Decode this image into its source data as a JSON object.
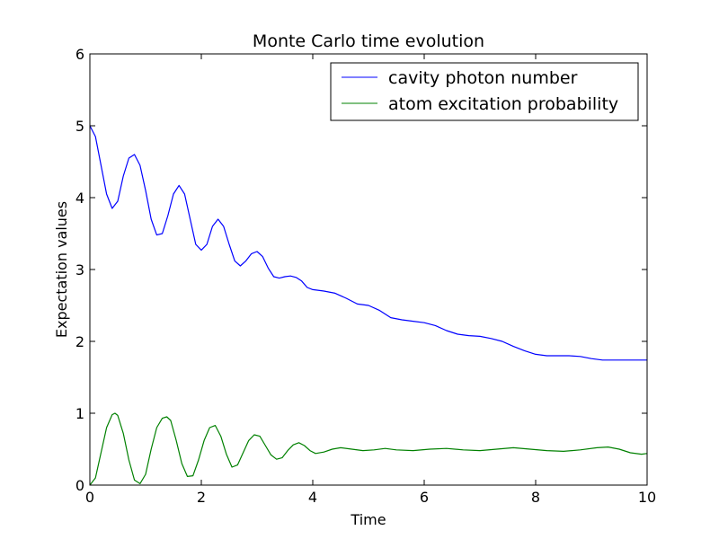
{
  "chart_data": {
    "type": "line",
    "title": "Monte Carlo time evolution",
    "xlabel": "Time",
    "ylabel": "Expectation values",
    "xlim": [
      0,
      10
    ],
    "ylim": [
      0,
      6
    ],
    "xticks": [
      0,
      2,
      4,
      6,
      8,
      10
    ],
    "yticks": [
      0,
      1,
      2,
      3,
      4,
      5,
      6
    ],
    "grid": false,
    "legend_position": "top-right",
    "series": [
      {
        "name": "cavity photon number",
        "color": "#0000ff",
        "x": [
          0,
          0.1,
          0.2,
          0.3,
          0.4,
          0.5,
          0.6,
          0.7,
          0.8,
          0.9,
          1.0,
          1.1,
          1.2,
          1.3,
          1.4,
          1.5,
          1.6,
          1.7,
          1.8,
          1.9,
          2.0,
          2.1,
          2.2,
          2.3,
          2.4,
          2.5,
          2.6,
          2.7,
          2.8,
          2.9,
          3.0,
          3.1,
          3.2,
          3.3,
          3.4,
          3.5,
          3.6,
          3.7,
          3.8,
          3.9,
          4.0,
          4.2,
          4.4,
          4.6,
          4.8,
          5.0,
          5.2,
          5.4,
          5.6,
          5.8,
          6.0,
          6.2,
          6.4,
          6.6,
          6.8,
          7.0,
          7.2,
          7.4,
          7.6,
          7.8,
          8.0,
          8.2,
          8.4,
          8.6,
          8.8,
          9.0,
          9.2,
          9.4,
          9.6,
          9.8,
          10.0
        ],
        "y": [
          5.0,
          4.85,
          4.45,
          4.05,
          3.85,
          3.95,
          4.3,
          4.55,
          4.6,
          4.45,
          4.1,
          3.7,
          3.48,
          3.5,
          3.75,
          4.05,
          4.17,
          4.05,
          3.7,
          3.35,
          3.27,
          3.35,
          3.6,
          3.7,
          3.6,
          3.35,
          3.12,
          3.05,
          3.12,
          3.22,
          3.25,
          3.18,
          3.02,
          2.9,
          2.88,
          2.9,
          2.91,
          2.89,
          2.84,
          2.75,
          2.72,
          2.7,
          2.67,
          2.6,
          2.52,
          2.5,
          2.43,
          2.33,
          2.3,
          2.28,
          2.26,
          2.22,
          2.15,
          2.1,
          2.08,
          2.07,
          2.04,
          2.0,
          1.93,
          1.87,
          1.82,
          1.8,
          1.8,
          1.8,
          1.79,
          1.76,
          1.74,
          1.74,
          1.74,
          1.74,
          1.74
        ]
      },
      {
        "name": "atom excitation probability",
        "color": "#008000",
        "x": [
          0,
          0.1,
          0.2,
          0.3,
          0.4,
          0.45,
          0.5,
          0.6,
          0.7,
          0.8,
          0.9,
          1.0,
          1.1,
          1.2,
          1.3,
          1.38,
          1.45,
          1.55,
          1.65,
          1.75,
          1.85,
          1.95,
          2.05,
          2.15,
          2.25,
          2.35,
          2.45,
          2.55,
          2.65,
          2.75,
          2.85,
          2.95,
          3.05,
          3.15,
          3.25,
          3.35,
          3.45,
          3.55,
          3.65,
          3.75,
          3.85,
          3.95,
          4.05,
          4.2,
          4.35,
          4.5,
          4.7,
          4.9,
          5.1,
          5.3,
          5.5,
          5.8,
          6.1,
          6.4,
          6.7,
          7.0,
          7.3,
          7.6,
          7.9,
          8.2,
          8.5,
          8.8,
          9.1,
          9.3,
          9.5,
          9.7,
          9.9,
          10.0
        ],
        "y": [
          0.0,
          0.1,
          0.45,
          0.8,
          0.98,
          1.0,
          0.97,
          0.72,
          0.35,
          0.07,
          0.02,
          0.15,
          0.5,
          0.8,
          0.93,
          0.95,
          0.9,
          0.62,
          0.3,
          0.12,
          0.13,
          0.35,
          0.62,
          0.8,
          0.83,
          0.68,
          0.43,
          0.25,
          0.28,
          0.45,
          0.62,
          0.7,
          0.68,
          0.55,
          0.42,
          0.36,
          0.38,
          0.48,
          0.56,
          0.59,
          0.55,
          0.48,
          0.44,
          0.46,
          0.5,
          0.52,
          0.5,
          0.48,
          0.49,
          0.51,
          0.49,
          0.48,
          0.5,
          0.51,
          0.49,
          0.48,
          0.5,
          0.52,
          0.5,
          0.48,
          0.47,
          0.49,
          0.52,
          0.53,
          0.5,
          0.45,
          0.43,
          0.44
        ]
      }
    ]
  }
}
